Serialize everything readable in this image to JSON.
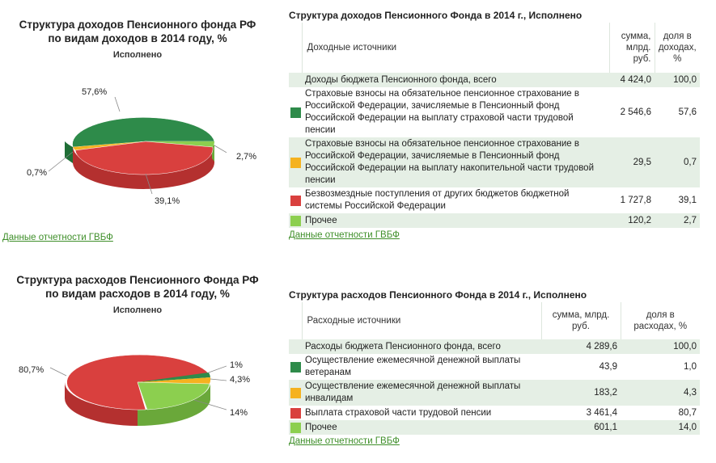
{
  "income_chart": {
    "title_line1": "Структура доходов Пенсионного фонда РФ",
    "title_line2": "по видам доходов в 2014 году, %",
    "subtitle": "Исполнено",
    "labels": {
      "green": "57,6%",
      "lightgreen": "2,7%",
      "orange": "0,7%",
      "red": "39,1%"
    },
    "values": [
      57.6,
      0.7,
      39.1,
      2.7
    ],
    "link": "Данные отчетности ГВБФ"
  },
  "income_table": {
    "title": "Структура доходов Пенсионного Фонда в 2014 г., Исполнено",
    "header": {
      "name": "Доходные источники",
      "sum": "сумма, млрд. руб.",
      "share": "доля в доходах, %"
    },
    "total": {
      "name": "Доходы бюджета Пенсионного фонда, всего",
      "sum": "4 424,0",
      "share": "100,0"
    },
    "rows": [
      {
        "name": "Страховые взносы на обязательное пенсионное страхование в Российской Федерации, зачисляемые в Пенсионный фонд Российской Федерации на выплату страховой части трудовой пенсии",
        "sum": "2 546,6",
        "share": "57,6",
        "color": "#2e8b4a"
      },
      {
        "name": "Страховые взносы на обязательное пенсионное страхование в Российской Федерации, зачисляемые в Пенсионный фонд Российской Федерации на выплату накопительной части трудовой пенсии",
        "sum": "29,5",
        "share": "0,7",
        "color": "#f5b21f"
      },
      {
        "name": "Безвозмездные поступления от других бюджетов бюджетной системы Российской Федерации",
        "sum": "1 727,8",
        "share": "39,1",
        "color": "#d9403e"
      },
      {
        "name": "Прочее",
        "sum": "120,2",
        "share": "2,7",
        "color": "#8ccf4f"
      }
    ],
    "link": "Данные отчетности ГВБФ"
  },
  "expense_chart": {
    "title_line1": "Структура расходов Пенсионного Фонда РФ",
    "title_line2": "по видам расходов в 2014 году, %",
    "subtitle": "Исполнено",
    "labels": {
      "red": "80,7%",
      "green": "1%",
      "orange": "4,3%",
      "lightgreen": "14%"
    },
    "values": [
      1.0,
      4.3,
      14.0,
      80.7
    ]
  },
  "expense_table": {
    "title": "Структура расходов Пенсионного Фонда в 2014 г., Исполнено",
    "header": {
      "name": "Расходные источники",
      "sum": "сумма, млрд. руб.",
      "share": "доля в расходах, %"
    },
    "total": {
      "name": "Расходы бюджета Пенсионного фонда, всего",
      "sum": "4 289,6",
      "share": "100,0"
    },
    "rows": [
      {
        "name": "Осуществление ежемесячной денежной выплаты ветеранам",
        "sum": "43,9",
        "share": "1,0",
        "color": "#2e8b4a"
      },
      {
        "name": "Осуществление ежемесячной денежной выплаты инвалидам",
        "sum": "183,2",
        "share": "4,3",
        "color": "#f5b21f"
      },
      {
        "name": "Выплата страховой части трудовой пенсии",
        "sum": "3 461,4",
        "share": "80,7",
        "color": "#d9403e"
      },
      {
        "name": "Прочее",
        "sum": "601,1",
        "share": "14,0",
        "color": "#8ccf4f"
      }
    ],
    "link": "Данные отчетности ГВБФ"
  }
}
